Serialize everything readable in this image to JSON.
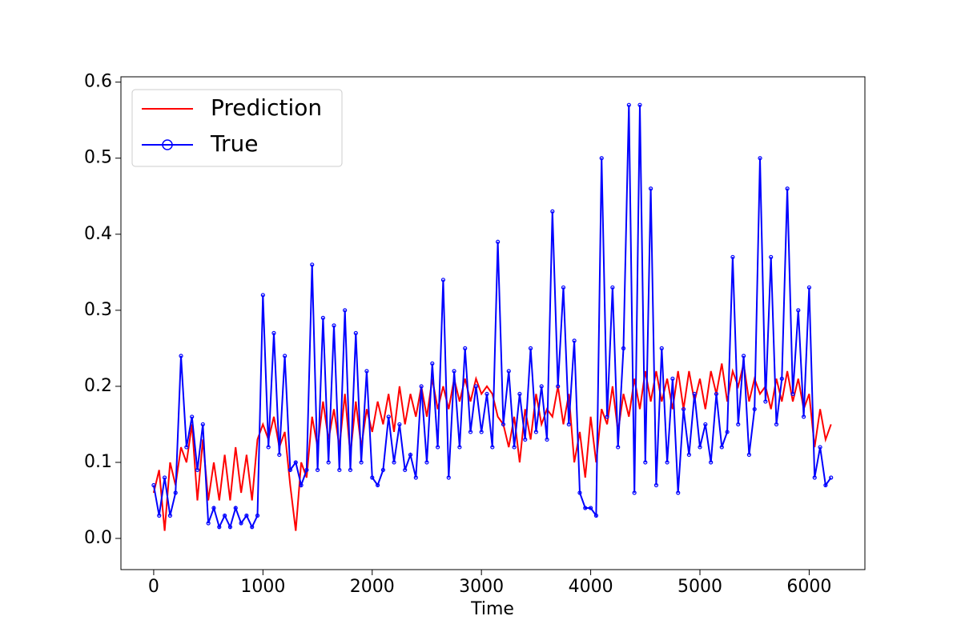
{
  "chart_data": {
    "type": "line",
    "xlabel": "Time",
    "x": [
      0,
      50,
      100,
      150,
      200,
      250,
      300,
      350,
      400,
      450,
      500,
      550,
      600,
      650,
      700,
      750,
      800,
      850,
      900,
      950,
      1000,
      1050,
      1100,
      1150,
      1200,
      1250,
      1300,
      1350,
      1400,
      1450,
      1500,
      1550,
      1600,
      1650,
      1700,
      1750,
      1800,
      1850,
      1900,
      1950,
      2000,
      2050,
      2100,
      2150,
      2200,
      2250,
      2300,
      2350,
      2400,
      2450,
      2500,
      2550,
      2600,
      2650,
      2700,
      2750,
      2800,
      2850,
      2900,
      2950,
      3000,
      3050,
      3100,
      3150,
      3200,
      3250,
      3300,
      3350,
      3400,
      3450,
      3500,
      3550,
      3600,
      3650,
      3700,
      3750,
      3800,
      3850,
      3900,
      3950,
      4000,
      4050,
      4100,
      4150,
      4200,
      4250,
      4300,
      4350,
      4400,
      4450,
      4500,
      4550,
      4600,
      4650,
      4700,
      4750,
      4800,
      4850,
      4900,
      4950,
      5000,
      5050,
      5100,
      5150,
      5200,
      5250,
      5300,
      5350,
      5400,
      5450,
      5500,
      5550,
      5600,
      5650,
      5700,
      5750,
      5800,
      5850,
      5900,
      5950,
      6000,
      6050,
      6100,
      6150,
      6200
    ],
    "series": [
      {
        "name": "Prediction",
        "color": "#ff0000",
        "marker": false,
        "values": [
          0.06,
          0.09,
          0.01,
          0.1,
          0.07,
          0.12,
          0.1,
          0.15,
          0.05,
          0.13,
          0.05,
          0.1,
          0.05,
          0.11,
          0.05,
          0.12,
          0.06,
          0.11,
          0.05,
          0.13,
          0.15,
          0.13,
          0.16,
          0.12,
          0.14,
          0.07,
          0.01,
          0.1,
          0.08,
          0.16,
          0.12,
          0.18,
          0.13,
          0.17,
          0.12,
          0.19,
          0.11,
          0.18,
          0.12,
          0.17,
          0.14,
          0.18,
          0.15,
          0.19,
          0.14,
          0.2,
          0.15,
          0.19,
          0.16,
          0.2,
          0.16,
          0.21,
          0.17,
          0.2,
          0.17,
          0.21,
          0.18,
          0.21,
          0.18,
          0.21,
          0.19,
          0.2,
          0.19,
          0.16,
          0.15,
          0.12,
          0.16,
          0.1,
          0.17,
          0.13,
          0.19,
          0.15,
          0.17,
          0.16,
          0.2,
          0.15,
          0.19,
          0.1,
          0.14,
          0.08,
          0.16,
          0.1,
          0.17,
          0.15,
          0.2,
          0.14,
          0.19,
          0.16,
          0.21,
          0.17,
          0.22,
          0.18,
          0.22,
          0.18,
          0.21,
          0.17,
          0.22,
          0.17,
          0.22,
          0.18,
          0.21,
          0.17,
          0.22,
          0.19,
          0.23,
          0.18,
          0.22,
          0.2,
          0.23,
          0.18,
          0.21,
          0.19,
          0.2,
          0.17,
          0.21,
          0.18,
          0.22,
          0.18,
          0.21,
          0.17,
          0.19,
          0.12,
          0.17,
          0.13,
          0.15
        ]
      },
      {
        "name": "True",
        "color": "#0000ff",
        "marker": true,
        "values": [
          0.07,
          0.03,
          0.08,
          0.03,
          0.06,
          0.24,
          0.12,
          0.16,
          0.09,
          0.15,
          0.02,
          0.04,
          0.015,
          0.03,
          0.015,
          0.04,
          0.02,
          0.03,
          0.015,
          0.03,
          0.32,
          0.12,
          0.27,
          0.11,
          0.24,
          0.09,
          0.1,
          0.07,
          0.09,
          0.36,
          0.09,
          0.29,
          0.1,
          0.28,
          0.09,
          0.3,
          0.09,
          0.27,
          0.1,
          0.22,
          0.08,
          0.07,
          0.09,
          0.16,
          0.1,
          0.15,
          0.09,
          0.11,
          0.08,
          0.2,
          0.1,
          0.23,
          0.12,
          0.34,
          0.08,
          0.22,
          0.12,
          0.25,
          0.14,
          0.2,
          0.14,
          0.19,
          0.12,
          0.39,
          0.15,
          0.22,
          0.12,
          0.19,
          0.13,
          0.25,
          0.14,
          0.2,
          0.13,
          0.43,
          0.2,
          0.33,
          0.15,
          0.26,
          0.06,
          0.04,
          0.04,
          0.03,
          0.5,
          0.16,
          0.33,
          0.12,
          0.25,
          0.57,
          0.06,
          0.57,
          0.1,
          0.46,
          0.07,
          0.25,
          0.1,
          0.21,
          0.06,
          0.17,
          0.11,
          0.19,
          0.12,
          0.15,
          0.1,
          0.19,
          0.12,
          0.14,
          0.37,
          0.15,
          0.24,
          0.11,
          0.17,
          0.5,
          0.18,
          0.37,
          0.15,
          0.21,
          0.46,
          0.19,
          0.3,
          0.16,
          0.33,
          0.08,
          0.12,
          0.07,
          0.08
        ]
      }
    ],
    "xlim": [
      -300,
      6510
    ],
    "ylim": [
      -0.041,
      0.607
    ],
    "xticks": [
      0,
      1000,
      2000,
      3000,
      4000,
      5000,
      6000
    ],
    "yticks": [
      {
        "value": 0,
        "label": "0.0"
      },
      0.1,
      0.2,
      0.3,
      0.4,
      0.5,
      0.6
    ],
    "grid": false,
    "legend": "upper left"
  }
}
